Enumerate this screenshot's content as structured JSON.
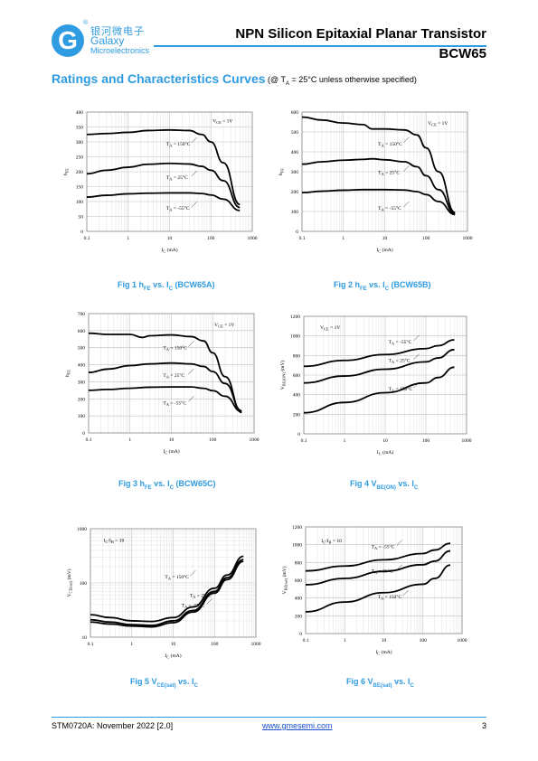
{
  "header": {
    "logo_glyph": "G",
    "logo_reg": "®",
    "logo_cn": "银河微电子",
    "logo_en_1": "Galaxy",
    "logo_en_2": "Microelectronics",
    "title": "NPN Silicon Epitaxial Planar Transistor",
    "part": "BCW65",
    "brand_color": "#2f9be0"
  },
  "section": {
    "title": "Ratings and Characteristics Curves",
    "condition_prefix": "(@ T",
    "condition_sub": "A",
    "condition_suffix": " = 25°C unless otherwise specified)"
  },
  "captions": {
    "fig1": {
      "prefix": "Fig 1   h",
      "sub1": "FE",
      "mid": " vs. I",
      "sub2": "C",
      "suffix": " (BCW65A)"
    },
    "fig2": {
      "prefix": "Fig 2   h",
      "sub1": "FE",
      "mid": " vs. I",
      "sub2": "C",
      "suffix": " (BCW65B)"
    },
    "fig3": {
      "prefix": "Fig 3   h",
      "sub1": "FE",
      "mid": " vs. I",
      "sub2": "C",
      "suffix": " (BCW65C)"
    },
    "fig4": {
      "prefix": "Fig 4   V",
      "sub1": "BE(ON)",
      "mid": " vs. I",
      "sub2": "C",
      "suffix": ""
    },
    "fig5": {
      "prefix": "Fig 5   V",
      "sub1": "CE(sat)",
      "mid": " vs. I",
      "sub2": "C",
      "suffix": ""
    },
    "fig6": {
      "prefix": "Fig 6   V",
      "sub1": "BE(sat)",
      "mid": " vs. I",
      "sub2": "C",
      "suffix": ""
    }
  },
  "footer": {
    "doc_id": "STM0720A: November 2022 [2.0]",
    "website": "www.gmesemi.com",
    "page": "3"
  },
  "chart_data": [
    {
      "id": "fig1",
      "type": "line",
      "x_scale": "log",
      "y_scale": "linear",
      "xlim": [
        0.1,
        1000
      ],
      "ylim": [
        0,
        400
      ],
      "x_ticks": [
        "0.1",
        "1",
        "10",
        "100",
        "1000"
      ],
      "y_ticks": [
        "0",
        "50",
        "100",
        "150",
        "200",
        "250",
        "300",
        "350",
        "400"
      ],
      "xlabel": "I_C (mA)",
      "ylabel": "h_FE",
      "grid": true,
      "condition": "V_CE = 1V",
      "series": [
        {
          "name": "T_A = 150°C",
          "x": [
            0.1,
            0.3,
            1,
            3,
            10,
            30,
            60,
            100,
            200,
            500
          ],
          "y": [
            325,
            328,
            332,
            338,
            340,
            338,
            325,
            300,
            230,
            90
          ]
        },
        {
          "name": "T_A = 25°C",
          "x": [
            0.1,
            0.3,
            1,
            3,
            10,
            30,
            60,
            100,
            200,
            500
          ],
          "y": [
            193,
            205,
            215,
            225,
            228,
            226,
            218,
            205,
            170,
            80
          ]
        },
        {
          "name": "T_A = -55°C",
          "x": [
            0.1,
            0.3,
            1,
            3,
            10,
            30,
            60,
            100,
            200,
            500
          ],
          "y": [
            115,
            121,
            126,
            128,
            129,
            129,
            127,
            122,
            108,
            70
          ]
        }
      ]
    },
    {
      "id": "fig2",
      "type": "line",
      "x_scale": "log",
      "y_scale": "linear",
      "xlim": [
        0.1,
        1000
      ],
      "ylim": [
        0,
        600
      ],
      "x_ticks": [
        "0.1",
        "1",
        "10",
        "100",
        "1000"
      ],
      "y_ticks": [
        "0",
        "100",
        "200",
        "300",
        "400",
        "500",
        "600"
      ],
      "xlabel": "I_C (mA)",
      "ylabel": "h_FE",
      "grid": true,
      "condition": "V_CE = 1V",
      "series": [
        {
          "name": "T_A = 150°C",
          "x": [
            0.1,
            0.3,
            1,
            3,
            5,
            10,
            30,
            60,
            100,
            200,
            500
          ],
          "y": [
            575,
            560,
            545,
            537,
            515,
            515,
            510,
            485,
            420,
            300,
            95
          ]
        },
        {
          "name": "T_A = 25°C",
          "x": [
            0.1,
            0.3,
            1,
            3,
            5,
            10,
            30,
            60,
            100,
            200,
            500
          ],
          "y": [
            338,
            350,
            358,
            362,
            365,
            360,
            350,
            325,
            280,
            210,
            90
          ]
        },
        {
          "name": "T_A = -55°C",
          "x": [
            0.1,
            0.3,
            1,
            3,
            10,
            30,
            60,
            100,
            200,
            500
          ],
          "y": [
            195,
            202,
            207,
            210,
            210,
            208,
            200,
            185,
            150,
            85
          ]
        }
      ]
    },
    {
      "id": "fig3",
      "type": "line",
      "x_scale": "log",
      "y_scale": "linear",
      "xlim": [
        0.1,
        1000
      ],
      "ylim": [
        0,
        700
      ],
      "x_ticks": [
        "0.1",
        "1",
        "10",
        "100",
        "1000"
      ],
      "y_ticks": [
        "0",
        "100",
        "200",
        "300",
        "400",
        "500",
        "600",
        "700"
      ],
      "xlabel": "I_C (mA)",
      "ylabel": "h_FE",
      "grid": true,
      "condition": "V_CE = 1V",
      "series": [
        {
          "name": "T_A = 150°C",
          "x": [
            0.1,
            0.3,
            1,
            2,
            3,
            10,
            30,
            60,
            100,
            200,
            500
          ],
          "y": [
            585,
            578,
            578,
            560,
            570,
            575,
            565,
            540,
            470,
            330,
            120
          ]
        },
        {
          "name": "T_A = 25°C",
          "x": [
            0.1,
            0.3,
            1,
            3,
            10,
            30,
            60,
            100,
            200,
            500
          ],
          "y": [
            355,
            375,
            395,
            405,
            410,
            405,
            390,
            360,
            290,
            130
          ]
        },
        {
          "name": "T_A = -55°C",
          "x": [
            0.1,
            0.3,
            1,
            3,
            10,
            30,
            60,
            100,
            200,
            500
          ],
          "y": [
            250,
            255,
            262,
            268,
            270,
            270,
            262,
            248,
            215,
            125
          ]
        }
      ]
    },
    {
      "id": "fig4",
      "type": "line",
      "x_scale": "log",
      "y_scale": "linear",
      "xlim": [
        0.1,
        1000
      ],
      "ylim": [
        0,
        1200
      ],
      "x_ticks": [
        "0.1",
        "1",
        "10",
        "100",
        "1000"
      ],
      "y_ticks": [
        "0",
        "200",
        "400",
        "600",
        "800",
        "1000",
        "1200"
      ],
      "xlabel": "I_C (mA)",
      "ylabel": "V_BE(ON) (mV)",
      "grid": true,
      "condition": "V_CE = 1V",
      "series": [
        {
          "name": "T_A = -55°C",
          "x": [
            0.1,
            1,
            10,
            100,
            200,
            500
          ],
          "y": [
            690,
            750,
            810,
            870,
            900,
            960
          ]
        },
        {
          "name": "T_A = 25°C",
          "x": [
            0.1,
            1,
            10,
            100,
            200,
            500
          ],
          "y": [
            520,
            590,
            660,
            735,
            775,
            860
          ]
        },
        {
          "name": "T_A = 150°C",
          "x": [
            0.1,
            1,
            10,
            100,
            200,
            500
          ],
          "y": [
            215,
            320,
            420,
            520,
            575,
            680
          ]
        }
      ]
    },
    {
      "id": "fig5",
      "type": "line",
      "x_scale": "log",
      "y_scale": "log",
      "xlim": [
        0.1,
        1000
      ],
      "ylim": [
        10,
        1000
      ],
      "x_ticks": [
        "0.1",
        "1",
        "10",
        "100",
        "1000"
      ],
      "y_ticks": [
        "10",
        "100",
        "1000"
      ],
      "xlabel": "I_C (mA)",
      "ylabel": "V_CE(sat) (mV)",
      "grid": true,
      "condition": "I_C/I_B = 10",
      "series": [
        {
          "name": "T_A = 150°C",
          "x": [
            0.1,
            0.3,
            1,
            3,
            10,
            30,
            100,
            200,
            500
          ],
          "y": [
            26,
            23,
            20,
            19.5,
            23,
            36,
            80,
            140,
            310
          ]
        },
        {
          "name": "T_A = 25°C",
          "x": [
            0.1,
            0.3,
            1,
            3,
            10,
            30,
            100,
            200,
            500
          ],
          "y": [
            21,
            19,
            17,
            16.5,
            20,
            31,
            70,
            125,
            270
          ]
        },
        {
          "name": "T_A = -55°C",
          "x": [
            0.1,
            0.3,
            1,
            3,
            10,
            30,
            100,
            200,
            500
          ],
          "y": [
            19,
            17.5,
            16,
            15.5,
            18.5,
            29,
            65,
            115,
            250
          ]
        }
      ]
    },
    {
      "id": "fig6",
      "type": "line",
      "x_scale": "log",
      "y_scale": "linear",
      "xlim": [
        0.1,
        1000
      ],
      "ylim": [
        0,
        1200
      ],
      "x_ticks": [
        "0.1",
        "1",
        "10",
        "100",
        "1000"
      ],
      "y_ticks": [
        "0",
        "200",
        "400",
        "600",
        "800",
        "1000",
        "1200"
      ],
      "xlabel": "I_C (mA)",
      "ylabel": "V_BE(sat) (mV)",
      "grid": true,
      "condition": "I_C/I_B = 10",
      "series": [
        {
          "name": "T_A = -55°C",
          "x": [
            0.1,
            1,
            10,
            100,
            200,
            500
          ],
          "y": [
            705,
            760,
            830,
            900,
            940,
            1015
          ]
        },
        {
          "name": "T_A = 25°C",
          "x": [
            0.1,
            1,
            10,
            100,
            200,
            500
          ],
          "y": [
            550,
            620,
            700,
            775,
            815,
            930
          ]
        },
        {
          "name": "T_A = 150°C",
          "x": [
            0.1,
            1,
            10,
            100,
            200,
            500
          ],
          "y": [
            245,
            355,
            460,
            555,
            620,
            770
          ]
        }
      ]
    }
  ]
}
